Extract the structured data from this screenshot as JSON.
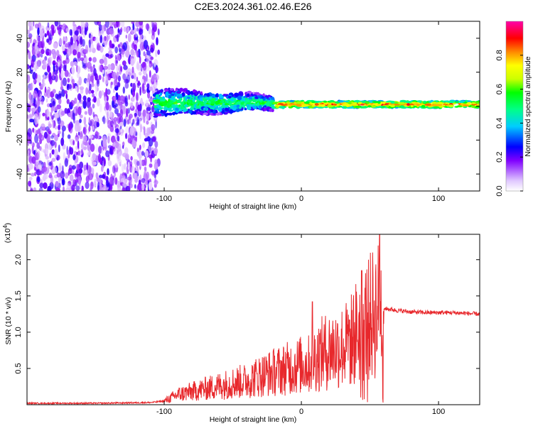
{
  "title": "C2E3.2024.361.02.46.E26",
  "chart_data": [
    {
      "type": "heatmap",
      "xlabel": "Height of straight line (km)",
      "ylabel": "Frequency (Hz)",
      "xlim": [
        -200,
        130
      ],
      "ylim": [
        -50,
        50
      ],
      "xticks": [
        -100,
        0,
        100
      ],
      "yticks": [
        -40,
        -20,
        0,
        20,
        40
      ],
      "colorbar": {
        "label": "Normalized spectral amplitude",
        "range": [
          0,
          1
        ],
        "ticks": [
          "0.0",
          "0.2",
          "0.4",
          "0.6",
          "0.8"
        ],
        "colormap": [
          "#ffffff",
          "#cc99ff",
          "#8000ff",
          "#0000ff",
          "#00ccff",
          "#00ff88",
          "#00ff00",
          "#ccff00",
          "#ffff00",
          "#ff8800",
          "#ff0000",
          "#ff00aa"
        ]
      },
      "regions": [
        {
          "x_range": [
            -200,
            -107
          ],
          "description_value": "broadband noise",
          "freq_range": [
            -50,
            50
          ],
          "amplitude": 0.2
        },
        {
          "x_range": [
            -107,
            -20
          ],
          "freq_center": 2,
          "freq_halfwidth": [
            8,
            4
          ],
          "amplitude": 0.45
        },
        {
          "x_range": [
            -20,
            130
          ],
          "freq_center": 1,
          "freq_halfwidth": 2,
          "amplitude": 0.75
        }
      ]
    },
    {
      "type": "line",
      "xlabel": "Height of straight line (km)",
      "ylabel": "SNR (10 * v/v)",
      "scale_label": "(x10",
      "scale_exp": "4",
      "xlim": [
        -200,
        130
      ],
      "ylim": [
        0,
        2.35
      ],
      "xticks": [
        -100,
        0,
        100
      ],
      "yticks": [
        0.5,
        1.0,
        1.5,
        2.0
      ],
      "color": "#e8282c",
      "series": [
        {
          "x": [
            -200,
            -150,
            -110,
            -100,
            -90,
            -80,
            -70,
            -60,
            -50,
            -40,
            -30,
            -20,
            -10,
            0,
            5,
            10,
            20,
            30,
            35,
            40,
            45,
            50,
            55,
            60,
            70,
            80,
            90,
            100,
            110,
            120,
            130
          ],
          "y": [
            0.02,
            0.02,
            0.03,
            0.05,
            0.14,
            0.18,
            0.22,
            0.26,
            0.3,
            0.33,
            0.4,
            0.45,
            0.5,
            0.55,
            0.55,
            0.65,
            0.75,
            0.8,
            0.85,
            1.0,
            1.1,
            1.2,
            1.3,
            1.33,
            1.3,
            1.28,
            1.27,
            1.27,
            1.27,
            1.26,
            1.25
          ]
        }
      ],
      "peaks": [
        {
          "x": 8,
          "y": 1.42
        },
        {
          "x": 44,
          "y": 1.85
        },
        {
          "x": 57,
          "y": 2.35
        }
      ]
    }
  ]
}
